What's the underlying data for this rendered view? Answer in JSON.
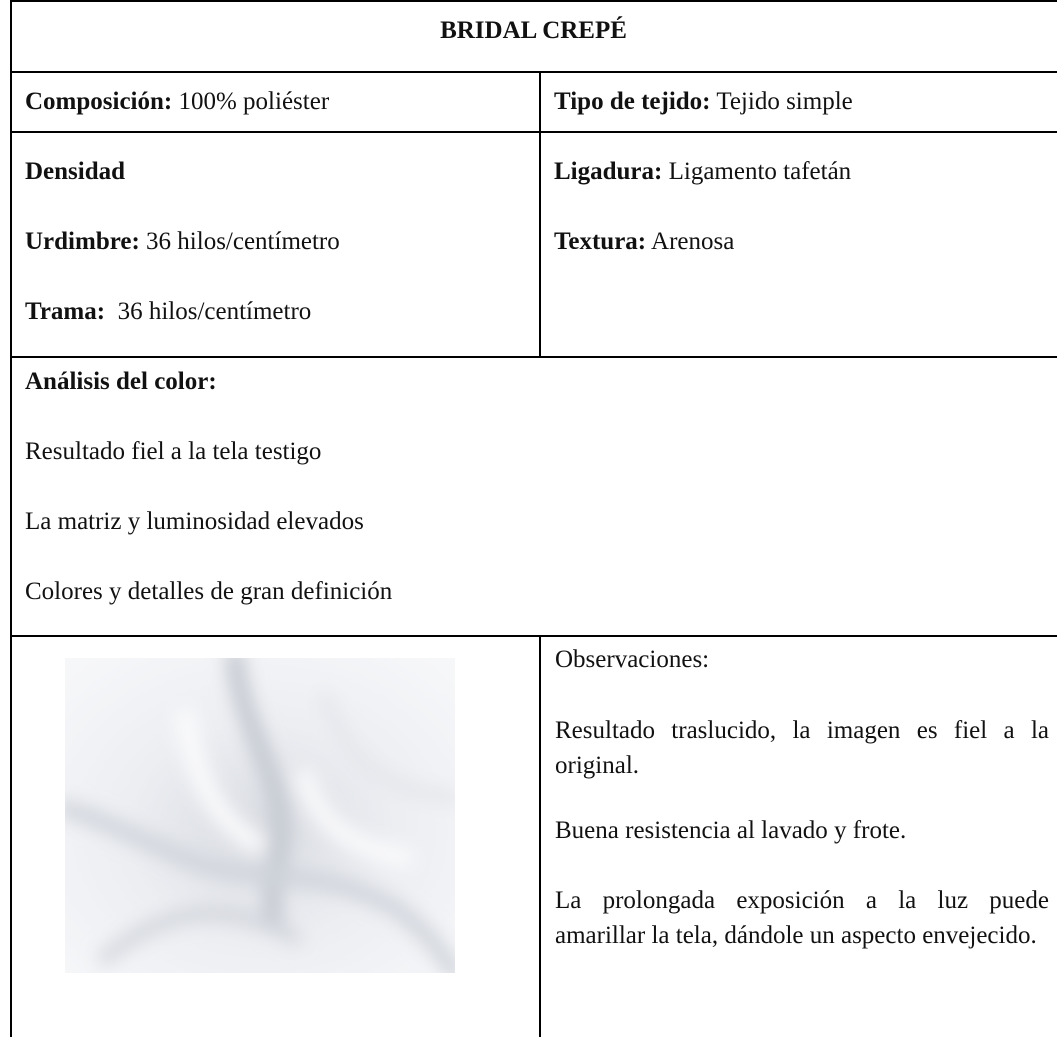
{
  "title": "BRIDAL CREPÉ",
  "composicion": {
    "label": "Composición:",
    "value": "100% poliéster"
  },
  "tipo_de_tejido": {
    "label": "Tipo de tejido:",
    "value": "Tejido simple"
  },
  "densidad": {
    "heading": "Densidad",
    "urdimbre": {
      "label": "Urdimbre:",
      "value": "36 hilos/centímetro"
    },
    "trama": {
      "label": "Trama:",
      "value": "36 hilos/centímetro"
    }
  },
  "ligadura": {
    "label": "Ligadura:",
    "value": "Ligamento tafetán"
  },
  "textura": {
    "label": "Textura:",
    "value": "Arenosa"
  },
  "analisis_color": {
    "heading": "Análisis del color:",
    "lines": [
      "Resultado fiel a la tela testigo",
      "La matriz y luminosidad elevados",
      "Colores y detalles de gran definición"
    ]
  },
  "observaciones": {
    "heading": "Observaciones:",
    "paragraphs": [
      "Resultado traslucido, la imagen es fiel a la original.",
      "Buena resistencia al lavado y frote.",
      "La prolongada exposición a la luz puede amarillar la tela, dándole un aspecto envejecido."
    ]
  }
}
